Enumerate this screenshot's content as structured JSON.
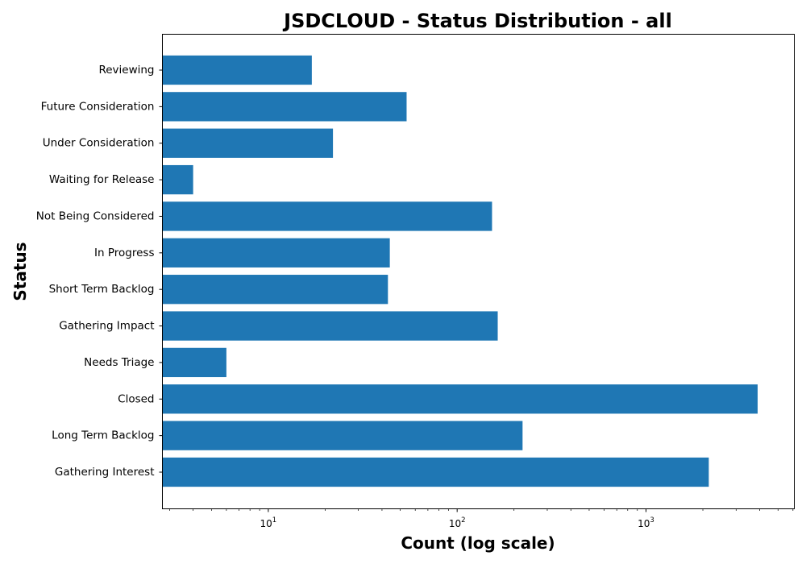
{
  "chart_data": {
    "type": "bar",
    "orientation": "horizontal",
    "title": "JSDCLOUD - Status Distribution - all",
    "xlabel": "Count (log scale)",
    "ylabel": "Status",
    "xscale": "log",
    "xlim": [
      2.75,
      6100
    ],
    "x_ticks": [
      {
        "base": "10",
        "exp": "1",
        "value": 10
      },
      {
        "base": "10",
        "exp": "2",
        "value": 100
      },
      {
        "base": "10",
        "exp": "3",
        "value": 1000
      }
    ],
    "categories": [
      "Reviewing",
      "Future Consideration",
      "Under Consideration",
      "Waiting for Release",
      "Not Being Considered",
      "In Progress",
      "Short Term Backlog",
      "Gathering Impact",
      "Needs Triage",
      "Closed",
      "Long Term Backlog",
      "Gathering Interest"
    ],
    "values": [
      17,
      54,
      22,
      4,
      153,
      44,
      43,
      164,
      6,
      3900,
      222,
      2150
    ],
    "bar_color": "#1f77b4",
    "grid": false,
    "legend": "none"
  }
}
